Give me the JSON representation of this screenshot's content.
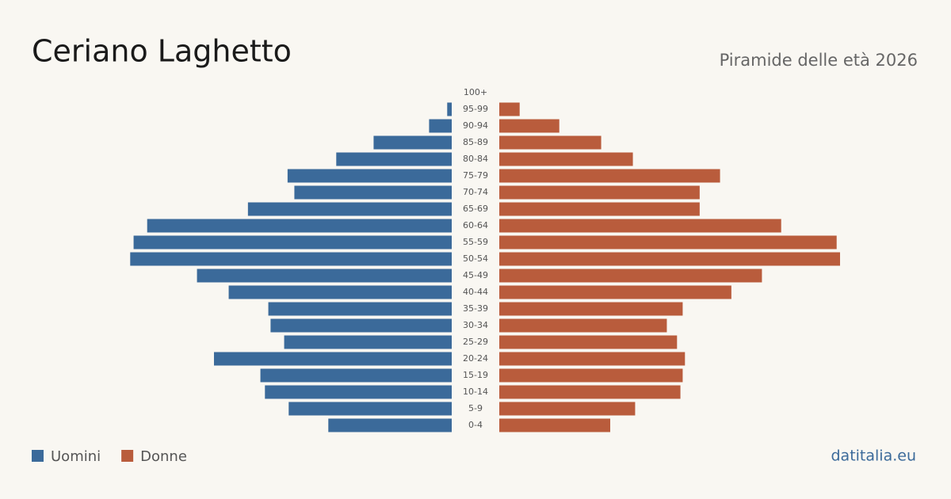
{
  "chart_data": {
    "type": "pyramid",
    "title": "Ceriano Laghetto",
    "subtitle": "Piramide delle età 2026",
    "source": "datitalia.eu",
    "categories": [
      "100+",
      "95-99",
      "90-94",
      "85-89",
      "80-84",
      "75-79",
      "70-74",
      "65-69",
      "60-64",
      "55-59",
      "50-54",
      "45-49",
      "40-44",
      "35-39",
      "30-34",
      "25-29",
      "20-24",
      "15-19",
      "10-14",
      "5-9",
      "0-4"
    ],
    "series": [
      {
        "name": "Uomini",
        "color": "#3b6a9a",
        "values": [
          0,
          4,
          20,
          69,
          102,
          145,
          139,
          180,
          269,
          281,
          284,
          225,
          197,
          162,
          160,
          148,
          210,
          169,
          165,
          144,
          109
        ]
      },
      {
        "name": "Donne",
        "color": "#b95c3c",
        "values": [
          0,
          18,
          53,
          90,
          118,
          195,
          177,
          177,
          249,
          298,
          301,
          232,
          205,
          162,
          148,
          157,
          164,
          162,
          160,
          120,
          98
        ]
      }
    ]
  }
}
